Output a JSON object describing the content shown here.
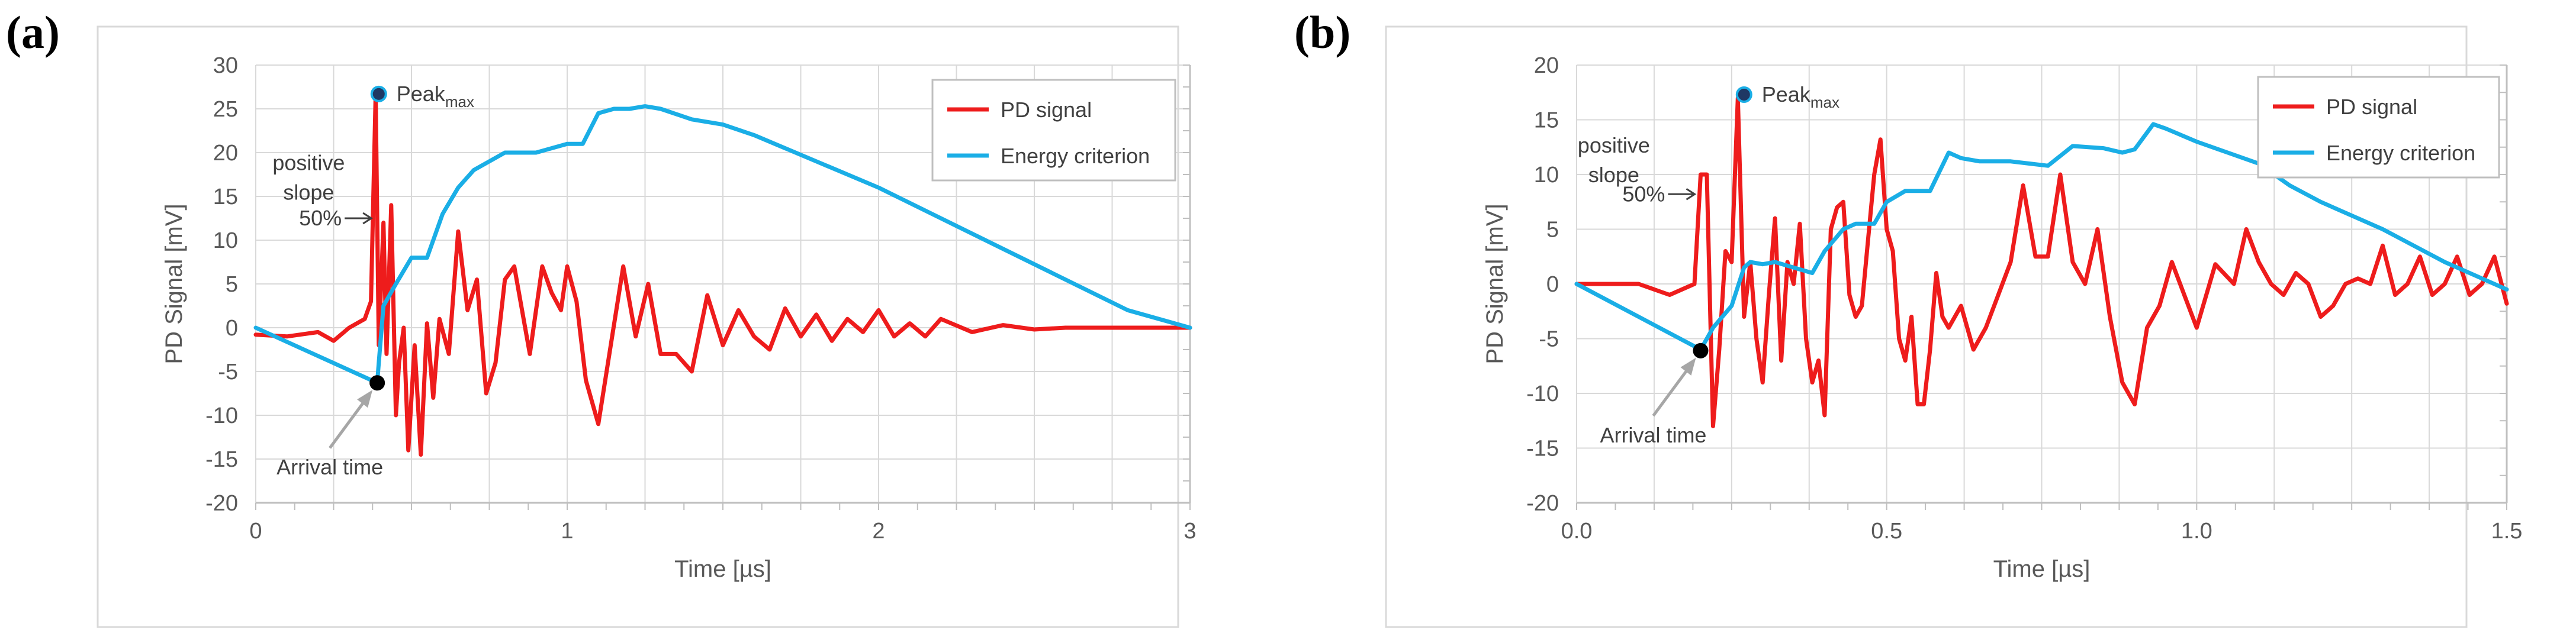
{
  "chart_data": [
    {
      "type": "line",
      "panel_label": "(a)",
      "title": "",
      "xlabel": "Time [µs]",
      "ylabel": "PD Signal [mV]",
      "xlim": [
        0,
        3
      ],
      "ylim": [
        -20,
        30
      ],
      "x_ticks": [
        0,
        1,
        2,
        3
      ],
      "x_tick_labels": [
        "0",
        "1",
        "2",
        "3"
      ],
      "y_ticks": [
        -20,
        -15,
        -10,
        -5,
        0,
        5,
        10,
        15,
        20,
        25,
        30
      ],
      "y_tick_labels": [
        "-20",
        "-15",
        "-10",
        "-5",
        "0",
        "5",
        "10",
        "15",
        "20",
        "25",
        "30"
      ],
      "legend": [
        "PD signal",
        "Energy criterion"
      ],
      "legend_position": "top-right",
      "grid": true,
      "colors": {
        "pd": "#ee1c1c",
        "energy": "#1aaee6"
      },
      "series": [
        {
          "name": "PD signal",
          "x": [
            0,
            0.1,
            0.2,
            0.25,
            0.3,
            0.35,
            0.37,
            0.385,
            0.395,
            0.41,
            0.42,
            0.435,
            0.45,
            0.46,
            0.475,
            0.49,
            0.51,
            0.53,
            0.55,
            0.57,
            0.59,
            0.62,
            0.65,
            0.68,
            0.71,
            0.74,
            0.77,
            0.8,
            0.83,
            0.86,
            0.88,
            0.92,
            0.95,
            0.98,
            1.0,
            1.03,
            1.06,
            1.1,
            1.14,
            1.18,
            1.22,
            1.26,
            1.3,
            1.35,
            1.4,
            1.45,
            1.5,
            1.55,
            1.6,
            1.65,
            1.7,
            1.75,
            1.8,
            1.85,
            1.9,
            1.95,
            2.0,
            2.05,
            2.1,
            2.15,
            2.2,
            2.3,
            2.4,
            2.5,
            2.6,
            2.8,
            3.0
          ],
          "y": [
            -0.8,
            -1,
            -0.5,
            -1.5,
            0,
            1,
            3,
            26.7,
            -2,
            12,
            -3,
            14,
            -10,
            -4,
            0,
            -14,
            -2,
            -14.5,
            0.5,
            -8,
            1,
            -3,
            11,
            2,
            5.5,
            -7.5,
            -4,
            5.5,
            7,
            1,
            -3,
            7,
            4,
            2,
            7,
            3,
            -6,
            -11,
            -2,
            7,
            -1,
            5,
            -3,
            -3,
            -5,
            3.7,
            -2,
            2,
            -1,
            -2.5,
            2.2,
            -1,
            1.5,
            -1.5,
            1,
            -0.5,
            2,
            -1,
            0.5,
            -1,
            1,
            -0.5,
            0.3,
            -0.2,
            0,
            0,
            0
          ]
        },
        {
          "name": "Energy criterion",
          "x": [
            0,
            0.39,
            0.395,
            0.41,
            0.45,
            0.5,
            0.55,
            0.6,
            0.65,
            0.7,
            0.8,
            0.9,
            1.0,
            1.05,
            1.1,
            1.15,
            1.2,
            1.25,
            1.3,
            1.4,
            1.5,
            1.6,
            1.7,
            1.8,
            2.0,
            2.2,
            2.4,
            2.6,
            2.8,
            3.0
          ],
          "y": [
            0,
            -6.3,
            -4,
            2.5,
            5,
            8,
            8,
            13,
            16,
            18,
            20,
            20,
            21,
            21,
            24.5,
            25,
            25,
            25.3,
            25,
            23.8,
            23.2,
            22,
            20.5,
            19,
            16,
            12.5,
            9,
            5.5,
            2,
            0
          ]
        }
      ],
      "annotations": [
        {
          "label": "Peak",
          "subscript": "max",
          "x": 0.395,
          "y": 26.7
        },
        {
          "label": "positive",
          "line2": "slope",
          "x": 0.17,
          "y": 18
        },
        {
          "label": "50%",
          "x": 0.39,
          "y": 12.5
        },
        {
          "label": "Arrival time",
          "x": 0.39,
          "y": -6.3
        }
      ]
    },
    {
      "type": "line",
      "panel_label": "(b)",
      "title": "",
      "xlabel": "Time [µs]",
      "ylabel": "PD Signal [mV]",
      "xlim": [
        0,
        1.5
      ],
      "ylim": [
        -20,
        20
      ],
      "x_ticks": [
        0,
        0.5,
        1.0,
        1.5
      ],
      "x_tick_labels": [
        "0.0",
        "0.5",
        "1.0",
        "1.5"
      ],
      "y_ticks": [
        -20,
        -15,
        -10,
        -5,
        0,
        5,
        10,
        15,
        20
      ],
      "y_tick_labels": [
        "-20",
        "-15",
        "-10",
        "-5",
        "0",
        "5",
        "10",
        "15",
        "20"
      ],
      "legend": [
        "PD signal",
        "Energy criterion"
      ],
      "legend_position": "top-right",
      "grid": true,
      "colors": {
        "pd": "#ee1c1c",
        "energy": "#1aaee6"
      },
      "series": [
        {
          "name": "PD signal",
          "x": [
            0,
            0.05,
            0.1,
            0.15,
            0.19,
            0.2,
            0.21,
            0.22,
            0.23,
            0.24,
            0.25,
            0.26,
            0.27,
            0.28,
            0.29,
            0.3,
            0.31,
            0.32,
            0.33,
            0.34,
            0.35,
            0.36,
            0.37,
            0.38,
            0.39,
            0.4,
            0.41,
            0.42,
            0.43,
            0.44,
            0.45,
            0.46,
            0.47,
            0.48,
            0.49,
            0.5,
            0.51,
            0.52,
            0.53,
            0.54,
            0.55,
            0.56,
            0.57,
            0.58,
            0.59,
            0.6,
            0.62,
            0.64,
            0.66,
            0.68,
            0.7,
            0.72,
            0.74,
            0.76,
            0.78,
            0.8,
            0.82,
            0.84,
            0.86,
            0.88,
            0.9,
            0.92,
            0.94,
            0.96,
            1.0,
            1.03,
            1.06,
            1.08,
            1.1,
            1.12,
            1.14,
            1.16,
            1.18,
            1.2,
            1.22,
            1.24,
            1.26,
            1.28,
            1.3,
            1.32,
            1.34,
            1.36,
            1.38,
            1.4,
            1.42,
            1.44,
            1.46,
            1.48,
            1.5
          ],
          "y": [
            0,
            0,
            0,
            -1,
            0,
            10,
            10,
            -13,
            -6,
            3,
            2,
            17,
            -3,
            2,
            -5,
            -9,
            -1,
            6,
            -7,
            2,
            0,
            5.5,
            -5,
            -9,
            -7,
            -12,
            5,
            7,
            7.5,
            -1,
            -3,
            -2,
            4,
            10,
            13.2,
            5,
            3,
            -5,
            -7,
            -3,
            -11,
            -11,
            -6,
            1,
            -3,
            -4,
            -2,
            -6,
            -4,
            -1,
            2,
            9,
            2.5,
            2.5,
            10,
            2,
            0,
            5,
            -3,
            -9,
            -11,
            -4,
            -2,
            2,
            -4,
            1.8,
            0,
            5,
            2,
            0,
            -1,
            1,
            0,
            -3,
            -2,
            0,
            0.5,
            0,
            3.5,
            -1,
            0,
            2.5,
            -1,
            0,
            2.5,
            -1,
            0,
            2.5,
            -1.8
          ]
        },
        {
          "name": "Energy criterion",
          "x": [
            0,
            0.2,
            0.22,
            0.25,
            0.27,
            0.28,
            0.3,
            0.32,
            0.35,
            0.38,
            0.4,
            0.43,
            0.45,
            0.48,
            0.5,
            0.53,
            0.57,
            0.6,
            0.62,
            0.65,
            0.7,
            0.73,
            0.76,
            0.8,
            0.85,
            0.88,
            0.9,
            0.93,
            0.95,
            1.0,
            1.05,
            1.1,
            1.15,
            1.2,
            1.3,
            1.4,
            1.5
          ],
          "y": [
            0,
            -6,
            -4,
            -2,
            1.5,
            2,
            1.8,
            2,
            1.5,
            1,
            3,
            5,
            5.5,
            5.5,
            7.5,
            8.5,
            8.5,
            12,
            11.5,
            11.2,
            11.2,
            11,
            10.8,
            12.6,
            12.4,
            12,
            12.3,
            14.6,
            14.2,
            13,
            12,
            11,
            9,
            7.5,
            5,
            2,
            -0.5
          ]
        }
      ],
      "annotations": [
        {
          "label": "Peak",
          "subscript": "max",
          "x": 0.27,
          "y": 17.3
        },
        {
          "label": "positive",
          "line2": "slope",
          "x": 0.06,
          "y": 12
        },
        {
          "label": "50%",
          "x": 0.2,
          "y": 8.2
        },
        {
          "label": "Arrival time",
          "x": 0.2,
          "y": -6.1
        }
      ]
    }
  ]
}
